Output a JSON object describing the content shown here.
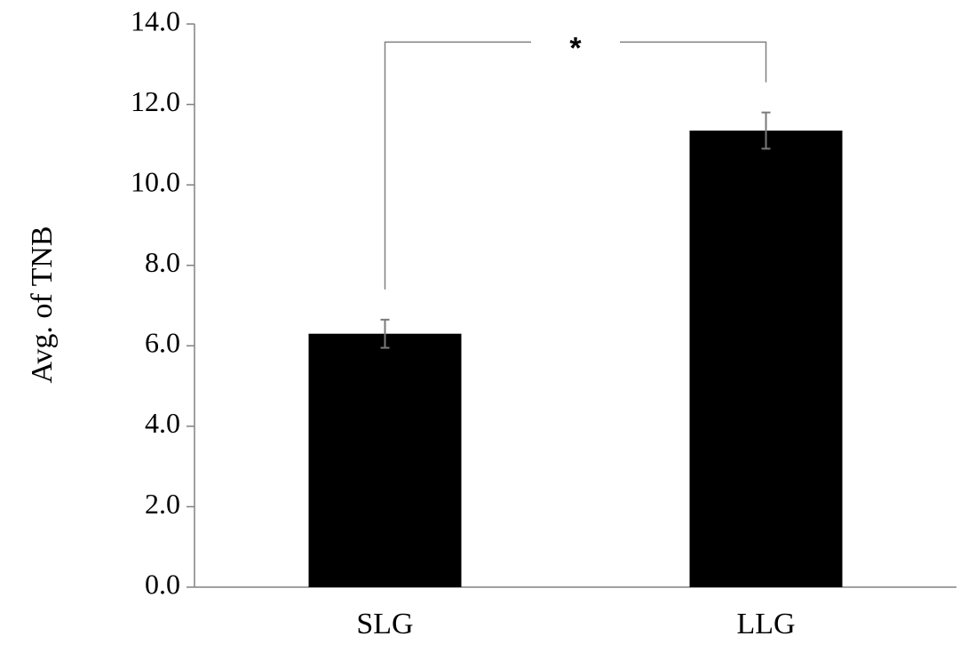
{
  "chart_data": {
    "type": "bar",
    "title": "",
    "xlabel": "",
    "ylabel": "Avg. of TNB",
    "categories": [
      "SLG",
      "LLG"
    ],
    "values": [
      6.3,
      11.35
    ],
    "errors": [
      0.35,
      0.45
    ],
    "ylim": [
      0,
      14
    ],
    "yticks": [
      "0.0",
      "2.0",
      "4.0",
      "6.0",
      "8.0",
      "10.0",
      "12.0",
      "14.0"
    ],
    "ytick_values": [
      0,
      2,
      4,
      6,
      8,
      10,
      12,
      14
    ],
    "grid": false,
    "legend": "none",
    "bar_color": "#000000",
    "significance": {
      "between": [
        "SLG",
        "LLG"
      ],
      "label": "*"
    }
  }
}
